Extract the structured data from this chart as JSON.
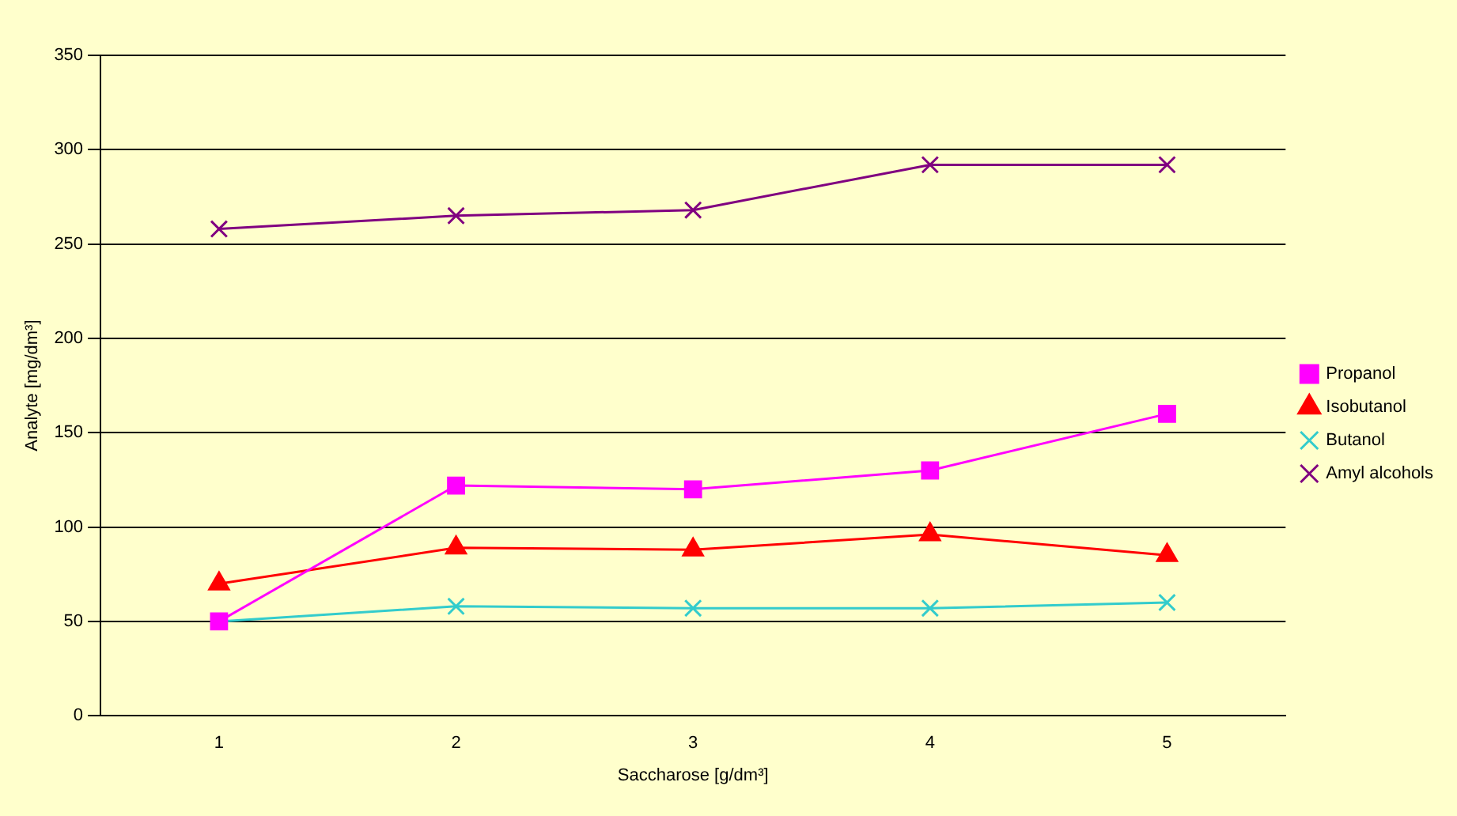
{
  "chart_data": {
    "type": "line",
    "xlabel": "Saccharose [g/dm³]",
    "ylabel": "Analyte [mg/dm³]",
    "categories": [
      "1",
      "2",
      "3",
      "4",
      "5"
    ],
    "series": [
      {
        "name": "Propanol",
        "color": "#ff00ff",
        "marker": "square",
        "values": [
          50,
          122,
          120,
          130,
          160
        ]
      },
      {
        "name": "Isobutanol",
        "color": "#ff0000",
        "marker": "triangle",
        "values": [
          70,
          89,
          88,
          96,
          85
        ]
      },
      {
        "name": "Butanol",
        "color": "#33cccc",
        "marker": "cross",
        "values": [
          50,
          58,
          57,
          57,
          60
        ]
      },
      {
        "name": "Amyl alcohols",
        "color": "#800080",
        "marker": "cross",
        "values": [
          258,
          265,
          268,
          292,
          292
        ]
      }
    ],
    "ylim": [
      0,
      350
    ],
    "yticks": [
      0,
      50,
      100,
      150,
      200,
      250,
      300,
      350
    ],
    "grid": "y",
    "legend": "right",
    "line_style": "solid"
  }
}
